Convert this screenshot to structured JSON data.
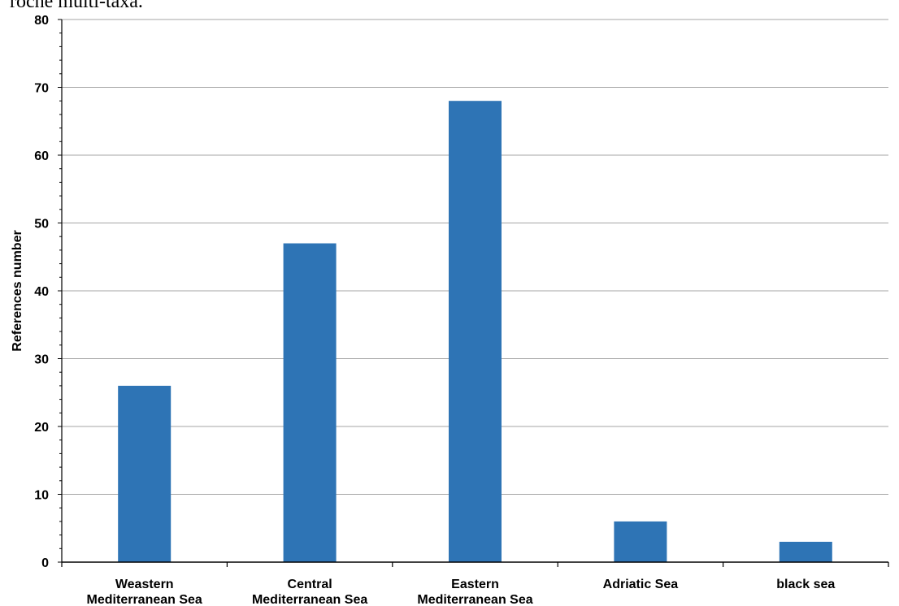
{
  "page": {
    "top_caption": "roche multi-taxa."
  },
  "chart_data": {
    "type": "bar",
    "categories": [
      [
        "Weastern",
        "Mediterranean Sea"
      ],
      [
        "Central",
        "Mediterranean Sea"
      ],
      [
        "Eastern",
        "Mediterranean Sea"
      ],
      [
        "Adriatic Sea"
      ],
      [
        "black sea"
      ]
    ],
    "values": [
      26,
      47,
      68,
      6,
      3
    ],
    "ylabel": "References number",
    "xlabel": "",
    "ylim": [
      0,
      80
    ],
    "yticks": [
      0,
      10,
      20,
      30,
      40,
      50,
      60,
      70,
      80
    ],
    "grid": true,
    "bar_color": "#2e74b5",
    "grid_color": "#a6a6a6"
  }
}
